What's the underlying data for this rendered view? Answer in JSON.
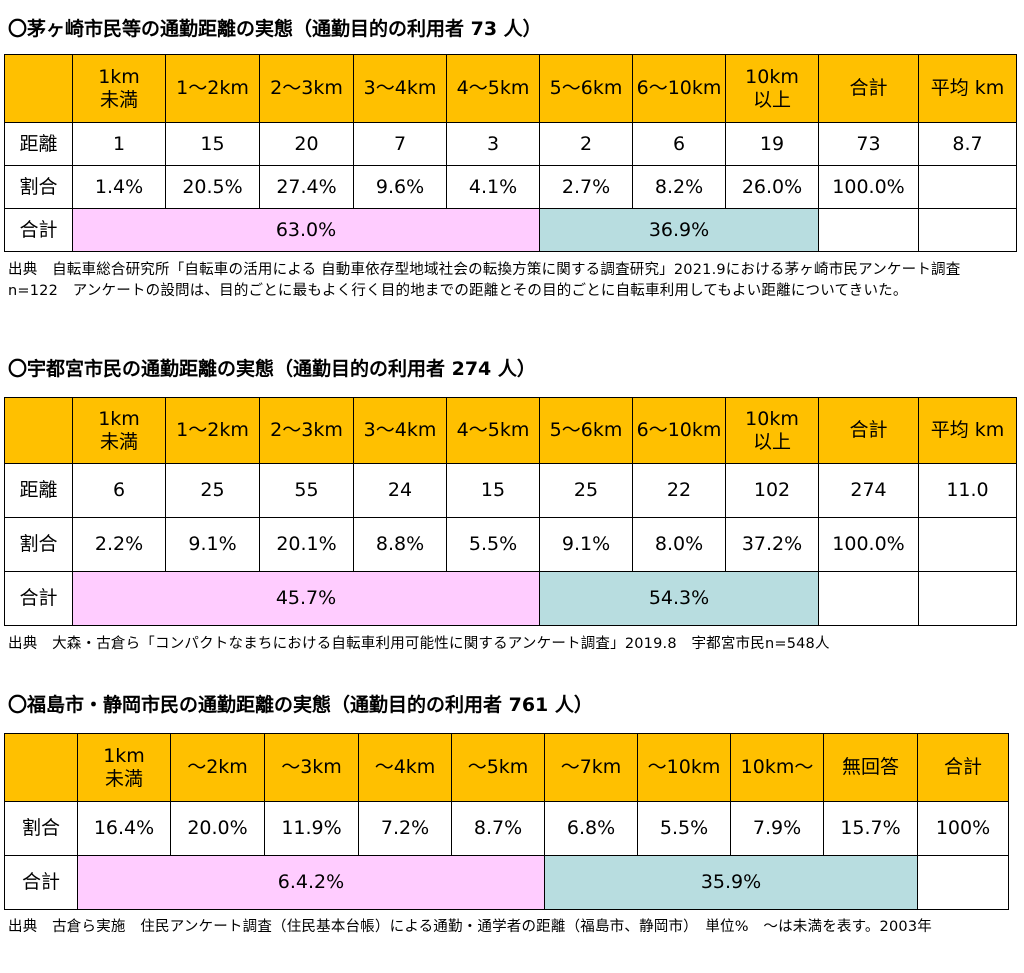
{
  "sections": [
    {
      "title": "〇茅ヶ崎市民等の通勤距離の実態（通勤目的の利用者 73 人）",
      "headers": [
        "",
        "1km\n未満",
        "1〜2km",
        "2〜3km",
        "3〜4km",
        "4〜5km",
        "5〜6km",
        "6〜10km",
        "10km\n以上",
        "合計",
        "平均 km"
      ],
      "distance_row": [
        "距離",
        "1",
        "15",
        "20",
        "7",
        "3",
        "2",
        "6",
        "19",
        "73",
        "8.7"
      ],
      "ratio_row": [
        "割合",
        "1.4%",
        "20.5%",
        "27.4%",
        "9.6%",
        "4.1%",
        "2.7%",
        "8.2%",
        "26.0%",
        "100.0%",
        ""
      ],
      "total_row": {
        "label": "合計",
        "group1": "63.0%",
        "group2": "36.9%"
      },
      "source": "出典　自転車総合研究所「自転車の活用による 自動車依存型地域社会の転換方策に関する調査研究」2021.9における茅ヶ崎市民アンケート調査　n=122　アンケートの設問は、目的ごとに最もよく行く目的地までの距離とその目的ごとに自転車利用してもよい距離についてきいた。"
    },
    {
      "title": "〇宇都宮市民の通勤距離の実態（通勤目的の利用者 274 人）",
      "headers": [
        "",
        "1km\n未満",
        "1〜2km",
        "2〜3km",
        "3〜4km",
        "4〜5km",
        "5〜6km",
        "6〜10km",
        "10km\n以上",
        "合計",
        "平均 km"
      ],
      "distance_row": [
        "距離",
        "6",
        "25",
        "55",
        "24",
        "15",
        "25",
        "22",
        "102",
        "274",
        "11.0"
      ],
      "ratio_row": [
        "割合",
        "2.2%",
        "9.1%",
        "20.1%",
        "8.8%",
        "5.5%",
        "9.1%",
        "8.0%",
        "37.2%",
        "100.0%",
        ""
      ],
      "total_row": {
        "label": "合計",
        "group1": "45.7%",
        "group2": "54.3%"
      },
      "source": "出典　大森・古倉ら「コンパクトなまちにおける自転車利用可能性に関するアンケート調査」2019.8　宇都宮市民n=548人"
    },
    {
      "title": "〇福島市・静岡市民の通勤距離の実態（通勤目的の利用者 761 人）",
      "headers": [
        "",
        "1km\n未満",
        "〜2km",
        "〜3km",
        "〜4km",
        "〜5km",
        "〜7km",
        "〜10km",
        "10km〜",
        "無回答",
        "合計"
      ],
      "ratio_row": [
        "割合",
        "16.4%",
        "20.0%",
        "11.9%",
        "7.2%",
        "8.7%",
        "6.8%",
        "5.5%",
        "7.9%",
        "15.7%",
        "100%"
      ],
      "total_row": {
        "label": "合計",
        "group1": "6.4.2%",
        "group2": "35.9%"
      },
      "source": "出典　古倉ら実施　住民アンケート調査（住民基本台帳）による通勤・通学者の距離（福島市、静岡市）　単位%　〜は未満を表す。2003年"
    }
  ],
  "colors": {
    "header_bg": "#ffc000",
    "near_group_bg": "#ffccff",
    "far_group_bg": "#b8dde0"
  }
}
